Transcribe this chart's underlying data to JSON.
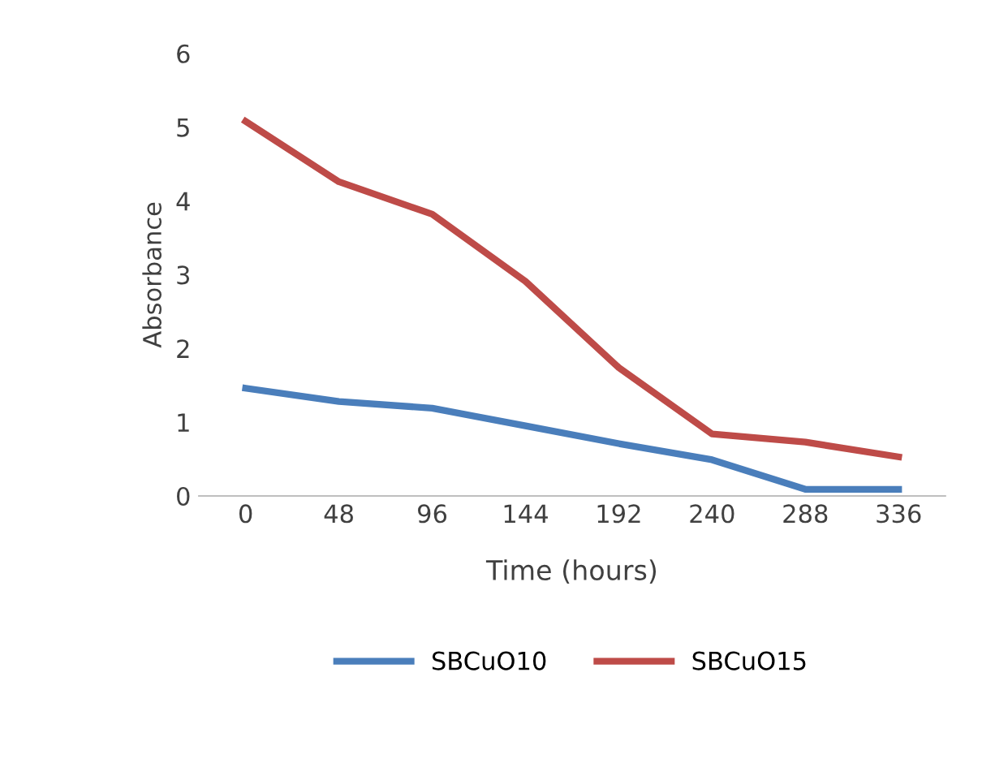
{
  "chart_data": {
    "type": "line",
    "xlabel": "Time (hours)",
    "ylabel": "Absorbance",
    "categories": [
      "0",
      "48",
      "96",
      "144",
      "192",
      "240",
      "288",
      "336"
    ],
    "series": [
      {
        "name": "SBCuO10",
        "color": "#4a7ebb",
        "values": [
          1.46,
          1.28,
          1.19,
          0.95,
          0.71,
          0.49,
          0.09,
          0.09
        ]
      },
      {
        "name": "SBCuO15",
        "color": "#be4b48",
        "values": [
          5.08,
          4.26,
          3.82,
          2.91,
          1.74,
          0.84,
          0.73,
          0.53
        ]
      }
    ],
    "ylim": [
      0,
      6
    ],
    "yticks": [
      0,
      1,
      2,
      3,
      4,
      5,
      6
    ],
    "grid": false,
    "legend": "bottom",
    "marker": "none",
    "line_style": "solid"
  }
}
